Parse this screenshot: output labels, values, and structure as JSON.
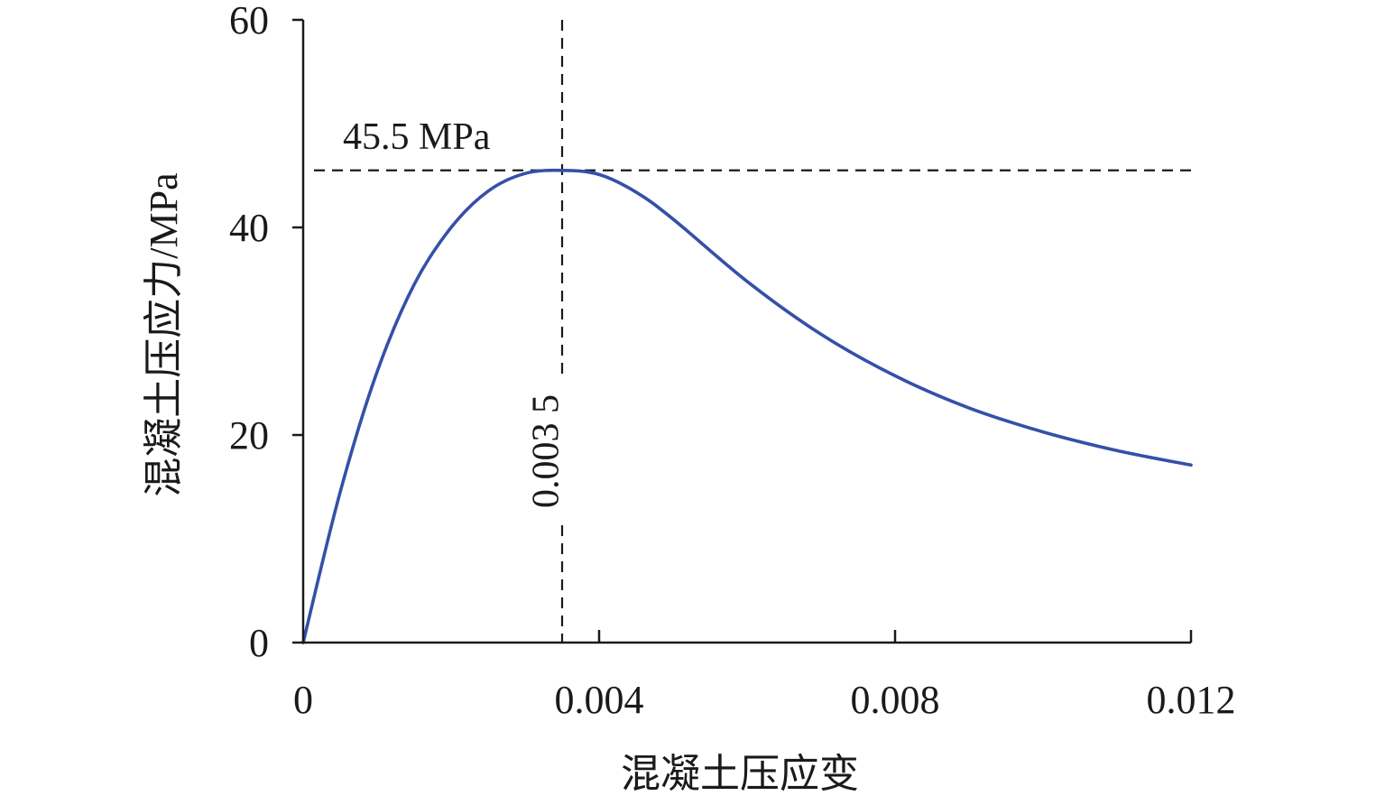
{
  "chart_data": {
    "type": "line",
    "title": "",
    "xlabel": "混凝土压应变",
    "ylabel": "混凝土压应力/MPa",
    "xlim": [
      0,
      0.012
    ],
    "ylim": [
      0,
      60
    ],
    "x_ticks": [
      0,
      0.004,
      0.008,
      0.012
    ],
    "x_tick_labels": [
      "0",
      "0.004",
      "0.008",
      "0.012"
    ],
    "y_ticks": [
      0,
      20,
      40,
      60
    ],
    "y_tick_labels": [
      "0",
      "20",
      "40",
      "60"
    ],
    "grid": false,
    "series": [
      {
        "color": "#3550a8",
        "x": [
          0,
          0.0005,
          0.001,
          0.0015,
          0.002,
          0.0025,
          0.003,
          0.0035,
          0.004,
          0.0045,
          0.005,
          0.006,
          0.007,
          0.008,
          0.009,
          0.01,
          0.011,
          0.012
        ],
        "y": [
          0,
          14.5,
          26.1,
          34.5,
          40.0,
          43.5,
          45.2,
          45.5,
          45.1,
          43.4,
          40.8,
          34.8,
          29.7,
          25.7,
          22.6,
          20.3,
          18.5,
          17.1
        ]
      }
    ],
    "reference_lines": [
      {
        "axis": "y",
        "value": 45.5,
        "label": "45.5 MPa"
      },
      {
        "axis": "x",
        "value": 0.0035,
        "label": "0.003 5"
      }
    ]
  }
}
